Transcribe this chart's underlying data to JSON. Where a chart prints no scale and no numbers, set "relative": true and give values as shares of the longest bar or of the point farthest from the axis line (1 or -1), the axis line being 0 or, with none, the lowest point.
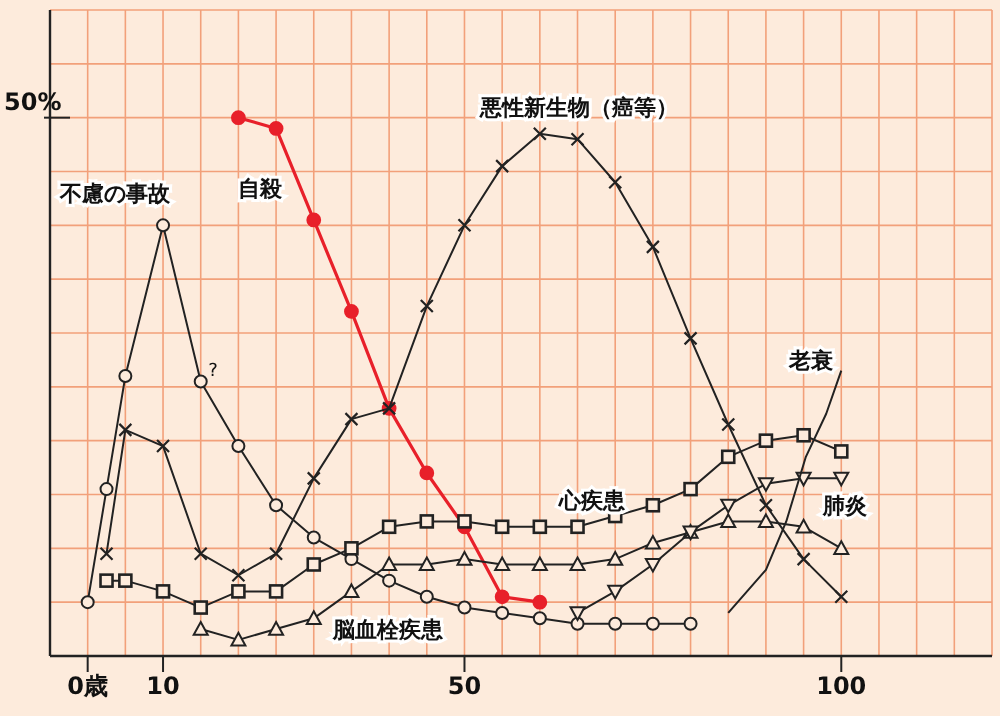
{
  "chart_data": {
    "type": "line",
    "relative": true,
    "xlim": [
      -5,
      120
    ],
    "xticks": [
      {
        "value": -5,
        "label": null
      },
      {
        "value": 0,
        "label": "0歳"
      },
      {
        "value": 5,
        "label": null
      },
      {
        "value": 10,
        "label": "10"
      },
      {
        "value": 15,
        "label": null
      },
      {
        "value": 20,
        "label": null
      },
      {
        "value": 25,
        "label": null
      },
      {
        "value": 30,
        "label": null
      },
      {
        "value": 35,
        "label": null
      },
      {
        "value": 40,
        "label": null
      },
      {
        "value": 45,
        "label": null
      },
      {
        "value": 50,
        "label": "50"
      },
      {
        "value": 55,
        "label": null
      },
      {
        "value": 60,
        "label": null
      },
      {
        "value": 65,
        "label": null
      },
      {
        "value": 70,
        "label": null
      },
      {
        "value": 75,
        "label": null
      },
      {
        "value": 80,
        "label": null
      },
      {
        "value": 85,
        "label": null
      },
      {
        "value": 90,
        "label": null
      },
      {
        "value": 95,
        "label": null
      },
      {
        "value": 100,
        "label": "100"
      },
      {
        "value": 105,
        "label": null
      },
      {
        "value": 110,
        "label": null
      },
      {
        "value": 115,
        "label": null
      },
      {
        "value": 120,
        "label": null
      }
    ],
    "grid": true,
    "annotations": [
      "50%",
      {
        "text": "?",
        "x": 16,
        "y": 0.52
      }
    ],
    "series": [
      {
        "name": "不慮の事故",
        "color": "#222222",
        "marker": "circle",
        "x": [
          0,
          2.5,
          5,
          10,
          15,
          20,
          25,
          30,
          35,
          40,
          45,
          50,
          55,
          60,
          65,
          70,
          75,
          80
        ],
        "values": [
          0.1,
          0.31,
          0.52,
          0.8,
          0.51,
          0.39,
          0.28,
          0.22,
          0.18,
          0.14,
          0.11,
          0.09,
          0.08,
          0.07,
          0.06,
          0.06,
          0.06,
          0.06
        ]
      },
      {
        "name": "自殺",
        "color": "#e8202a",
        "marker": "circle",
        "x": [
          20,
          25,
          30,
          35,
          40,
          45,
          50,
          55,
          60
        ],
        "values": [
          1,
          0.98,
          0.81,
          0.64,
          0.46,
          0.34,
          0.24,
          0.11,
          0.1
        ]
      },
      {
        "name": "悪性新生物（癌等）",
        "color": "#222222",
        "marker": "cross",
        "x": [
          2.5,
          5,
          10,
          15,
          20,
          25,
          30,
          35,
          40,
          45,
          50,
          55,
          60,
          65,
          70,
          75,
          80,
          85,
          90,
          95,
          100
        ],
        "values": [
          0.19,
          0.42,
          0.39,
          0.19,
          0.15,
          0.19,
          0.33,
          0.44,
          0.46,
          0.65,
          0.8,
          0.91,
          0.97,
          0.96,
          0.88,
          0.76,
          0.59,
          0.43,
          0.28,
          0.18,
          0.11
        ]
      },
      {
        "name": "心疾患",
        "color": "#222222",
        "marker": "square",
        "x": [
          2.5,
          5,
          10,
          15,
          20,
          25,
          30,
          35,
          40,
          45,
          50,
          55,
          60,
          65,
          70,
          75,
          80,
          85,
          90,
          95,
          100
        ],
        "values": [
          0.14,
          0.14,
          0.12,
          0.09,
          0.12,
          0.12,
          0.17,
          0.2,
          0.24,
          0.25,
          0.25,
          0.24,
          0.24,
          0.24,
          0.26,
          0.28,
          0.31,
          0.37,
          0.4,
          0.41,
          0.38
        ]
      },
      {
        "name": "脳血栓疾患",
        "color": "#222222",
        "marker": "triangle",
        "x": [
          15,
          20,
          25,
          30,
          35,
          40,
          45,
          50,
          55,
          60,
          65,
          70,
          75,
          80,
          85,
          90,
          95,
          100
        ],
        "values": [
          0.05,
          0.03,
          0.05,
          0.07,
          0.12,
          0.17,
          0.17,
          0.18,
          0.17,
          0.17,
          0.17,
          0.18,
          0.21,
          0.23,
          0.25,
          0.25,
          0.24,
          0.2
        ]
      },
      {
        "name": "肺炎",
        "color": "#222222",
        "marker": "triangle-down",
        "x": [
          65,
          70,
          75,
          80,
          85,
          90,
          95,
          100
        ],
        "values": [
          0.08,
          0.12,
          0.17,
          0.23,
          0.28,
          0.32,
          0.33,
          0.33
        ]
      },
      {
        "name": "老衰",
        "color": "#222222",
        "marker": "none",
        "x": [
          85,
          90,
          92.7,
          95.3,
          98,
          100
        ],
        "values": [
          0.08,
          0.16,
          0.25,
          0.37,
          0.45,
          0.53
        ]
      }
    ]
  }
}
